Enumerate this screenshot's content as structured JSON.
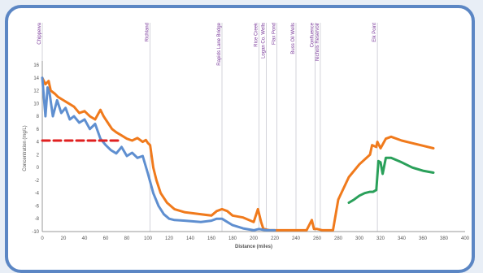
{
  "chart_data": {
    "type": "line",
    "xlabel": "Distance (miles)",
    "ylabel": "Concentration (mg/L)",
    "xlim": [
      0,
      400
    ],
    "ylim": [
      -10,
      16
    ],
    "x_ticks": [
      "0",
      "20",
      "40",
      "60",
      "80",
      "100",
      "120",
      "140",
      "160",
      "180",
      "200",
      "220",
      "240",
      "260",
      "280",
      "300",
      "320",
      "340",
      "360",
      "380",
      "400"
    ],
    "y_ticks": [
      "16",
      "14",
      "12",
      "10",
      "8",
      "6",
      "4",
      "2",
      "0",
      "-2",
      "-4",
      "-6",
      "-8",
      "-10"
    ],
    "annotations": [
      {
        "x": 0,
        "label": "Chippewa"
      },
      {
        "x": 102,
        "label": "Richland"
      },
      {
        "x": 170,
        "label": "Rapids Lane Bridge"
      },
      {
        "x": 205,
        "label": "Rice Creek"
      },
      {
        "x": 212,
        "label": "Logan Co. Wells"
      },
      {
        "x": 222,
        "label": "Flax Pond"
      },
      {
        "x": 240,
        "label": "Buss Oil Wells"
      },
      {
        "x": 258,
        "label": "Confluence"
      },
      {
        "x": 263,
        "label": "Nichols Reservoir"
      },
      {
        "x": 317,
        "label": "Elk Point"
      }
    ],
    "series": [
      {
        "name": "",
        "color": "#f07a1c",
        "x": [
          0,
          3,
          6,
          8,
          12,
          15,
          20,
          25,
          30,
          35,
          40,
          45,
          50,
          55,
          58,
          62,
          66,
          70,
          75,
          80,
          85,
          90,
          95,
          98,
          100,
          102,
          105,
          108,
          112,
          118,
          125,
          135,
          145,
          160,
          165,
          170,
          175,
          180,
          190,
          200,
          204,
          207,
          209,
          212,
          215,
          220,
          240,
          250,
          255,
          257,
          260,
          265,
          275,
          280,
          290,
          300,
          310,
          312,
          316,
          317,
          320,
          325,
          330,
          340,
          350,
          360,
          370
        ],
        "y": [
          14,
          13,
          13.5,
          12,
          11.5,
          11,
          10.5,
          10,
          9.5,
          8.5,
          8.8,
          8,
          7.5,
          9,
          8,
          7,
          6,
          5.5,
          5,
          4.5,
          4.2,
          4.6,
          4,
          4.3,
          3.8,
          3.5,
          0,
          -2,
          -4,
          -5.5,
          -6.5,
          -7,
          -7.2,
          -7.5,
          -6.8,
          -6.5,
          -6.8,
          -7.5,
          -7.8,
          -8.5,
          -6.5,
          -8.5,
          -9.5,
          -9.7,
          -9.8,
          -9.8,
          -9.8,
          -9.8,
          -8.2,
          -9.6,
          -9.6,
          -9.8,
          -9.8,
          -5,
          -1.5,
          0.5,
          2,
          3.5,
          3.2,
          4,
          3,
          4.5,
          4.8,
          4.2,
          3.8,
          3.4,
          3
        ]
      },
      {
        "name": "",
        "color": "#5f8fd0",
        "x": [
          0,
          3,
          5,
          7,
          10,
          14,
          18,
          22,
          26,
          30,
          35,
          40,
          45,
          50,
          55,
          60,
          65,
          70,
          75,
          80,
          85,
          90,
          95,
          100,
          105,
          110,
          115,
          120,
          125,
          135,
          150,
          160,
          165,
          170,
          175,
          180,
          190,
          200,
          205,
          208,
          212,
          220
        ],
        "y": [
          14,
          8,
          12.5,
          11.5,
          8,
          10.5,
          8.5,
          9.3,
          7.5,
          8,
          7,
          7.5,
          6,
          6.8,
          4.5,
          3.5,
          2.7,
          2.2,
          3.2,
          1.8,
          2.3,
          1.5,
          1.8,
          -1,
          -4,
          -6,
          -7.3,
          -8,
          -8.2,
          -8.3,
          -8.5,
          -8.3,
          -8,
          -8,
          -8.5,
          -9,
          -9.5,
          -9.8,
          -9.6,
          -9.7,
          -9.8,
          -9.8
        ]
      },
      {
        "name": "",
        "color": "#2aa05a",
        "x": [
          290,
          295,
          300,
          305,
          310,
          313,
          316,
          318,
          320,
          322,
          325,
          330,
          340,
          350,
          360,
          370
        ],
        "y": [
          -5.5,
          -5,
          -4.4,
          -4,
          -3.8,
          -3.8,
          -3.5,
          1,
          0.8,
          -1,
          1.5,
          1.5,
          0.8,
          0,
          -0.5,
          -0.8
        ]
      },
      {
        "name": "",
        "color": "#e02020",
        "dashed": true,
        "x": [
          0,
          75
        ],
        "y": [
          4.2,
          4.2
        ]
      }
    ]
  }
}
